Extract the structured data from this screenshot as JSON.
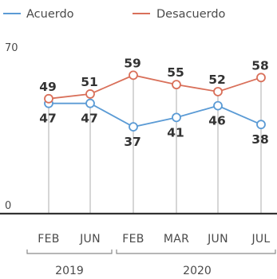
{
  "chart_data": {
    "type": "line",
    "title": "",
    "ylim": [
      0,
      70
    ],
    "y_ticks": [
      "70",
      "0"
    ],
    "categories": [
      "FEB",
      "JUN",
      "FEB",
      "MAR",
      "JUN",
      "JUL"
    ],
    "year_groups": [
      {
        "label": "2019",
        "start": 0,
        "end": 1
      },
      {
        "label": "2020",
        "start": 2,
        "end": 5
      }
    ],
    "series": [
      {
        "name": "Acuerdo",
        "color": "#5b9bd5",
        "values": [
          47,
          47,
          37,
          41,
          46,
          38
        ]
      },
      {
        "name": "Desacuerdo",
        "color": "#d9705a",
        "values": [
          49,
          51,
          59,
          55,
          52,
          58
        ]
      }
    ],
    "legend": "top-left",
    "grid": false
  }
}
